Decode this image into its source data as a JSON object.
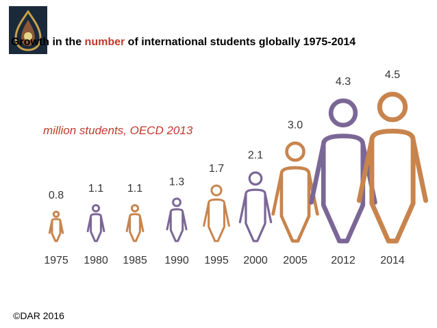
{
  "title": {
    "before": "Growth in the ",
    "highlight": "number",
    "after": " of international students globally 1975-2014"
  },
  "subtitle": "million students, OECD 2013",
  "credit": "©DAR 2016",
  "colors": {
    "orange": "#c8844d",
    "purple": "#7b6796",
    "red": "#c0392b"
  },
  "chart_data": {
    "type": "pictogram",
    "unit": "million students",
    "categories": [
      "1975",
      "1980",
      "1985",
      "1990",
      "1995",
      "2000",
      "2005",
      "2012",
      "2014"
    ],
    "values": [
      0.8,
      1.1,
      1.1,
      1.3,
      1.7,
      2.1,
      3.0,
      4.3,
      4.5
    ],
    "value_labels": [
      "0.8",
      "1.1",
      "1.1",
      "1.3",
      "1.7",
      "2.1",
      "3.0",
      "4.3",
      "4.5"
    ],
    "series_colors": [
      "orange",
      "purple",
      "orange",
      "purple",
      "orange",
      "purple",
      "orange",
      "purple",
      "orange"
    ]
  }
}
